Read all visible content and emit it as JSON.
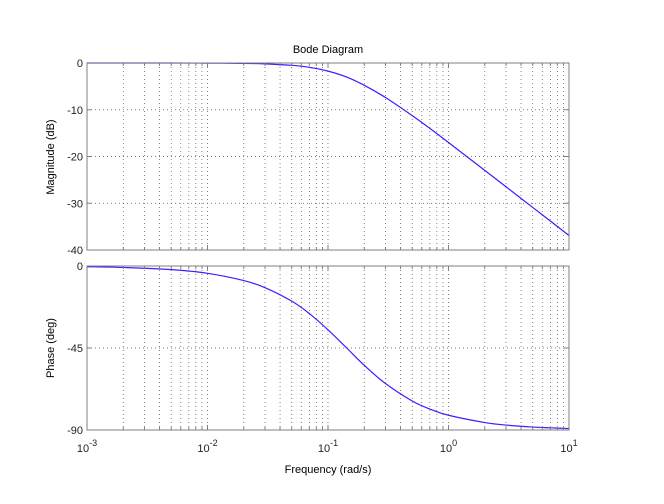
{
  "figure": {
    "title": "Bode Diagram",
    "xlabel": "Frequency  (rad/s)",
    "line_color": "#3c1eff",
    "axis_color": "#7f7f7f",
    "grid_color": "#555555"
  },
  "chart_data": [
    {
      "type": "line",
      "title": "Bode Diagram",
      "panel": "magnitude",
      "xlabel": "Frequency  (rad/s)",
      "ylabel": "Magnitude (dB)",
      "xscale": "log",
      "xlim": [
        0.001,
        10
      ],
      "ylim": [
        -40,
        0
      ],
      "yticks": [
        0,
        -10,
        -20,
        -30,
        -40
      ],
      "xticks": [
        "10^-3",
        "10^-2",
        "10^-1",
        "10^0",
        "10^1"
      ],
      "grid": true,
      "series": [
        {
          "name": "Magnitude",
          "x": [
            0.001,
            0.002,
            0.005,
            0.01,
            0.02,
            0.03,
            0.05,
            0.07,
            0.1,
            0.143,
            0.2,
            0.3,
            0.5,
            0.7,
            1,
            2,
            3,
            5,
            7,
            10
          ],
          "values": [
            0.0,
            -0.001,
            -0.005,
            -0.02,
            -0.08,
            -0.18,
            -0.49,
            -0.92,
            -1.74,
            -3.01,
            -4.77,
            -7.39,
            -11.26,
            -13.98,
            -17.0,
            -22.97,
            -26.47,
            -30.9,
            -33.8,
            -36.9
          ]
        }
      ]
    },
    {
      "type": "line",
      "panel": "phase",
      "xlabel": "Frequency  (rad/s)",
      "ylabel": "Phase (deg)",
      "xscale": "log",
      "xlim": [
        0.001,
        10
      ],
      "ylim": [
        -90,
        0
      ],
      "yticks": [
        0,
        -45,
        -90
      ],
      "xticks": [
        "10^-3",
        "10^-2",
        "10^-1",
        "10^0",
        "10^1"
      ],
      "grid": true,
      "series": [
        {
          "name": "Phase",
          "x": [
            0.001,
            0.002,
            0.005,
            0.01,
            0.02,
            0.03,
            0.05,
            0.07,
            0.1,
            0.143,
            0.2,
            0.3,
            0.5,
            0.7,
            1,
            2,
            3,
            5,
            7,
            10
          ],
          "values": [
            -0.4,
            -0.8,
            -2.0,
            -4.0,
            -8.0,
            -11.9,
            -19.3,
            -26.1,
            -35.0,
            -45.0,
            -54.5,
            -64.5,
            -74.1,
            -78.5,
            -81.9,
            -85.9,
            -87.3,
            -88.4,
            -88.8,
            -89.2
          ]
        }
      ]
    }
  ],
  "axes": {
    "magnitude": {
      "ylabel": "Magnitude (dB)",
      "yticks": [
        {
          "value": 0,
          "label": "0"
        },
        {
          "value": -10,
          "label": "-10"
        },
        {
          "value": -20,
          "label": "-20"
        },
        {
          "value": -30,
          "label": "-30"
        },
        {
          "value": -40,
          "label": "-40"
        }
      ]
    },
    "phase": {
      "ylabel": "Phase (deg)",
      "yticks": [
        {
          "value": 0,
          "label": "0"
        },
        {
          "value": -45,
          "label": "-45"
        },
        {
          "value": -90,
          "label": "-90"
        }
      ]
    },
    "xticks": [
      {
        "exp": -3,
        "base": "10",
        "sup": "-3"
      },
      {
        "exp": -2,
        "base": "10",
        "sup": "-2"
      },
      {
        "exp": -1,
        "base": "10",
        "sup": "-1"
      },
      {
        "exp": 0,
        "base": "10",
        "sup": "0"
      },
      {
        "exp": 1,
        "base": "10",
        "sup": "1"
      }
    ]
  }
}
